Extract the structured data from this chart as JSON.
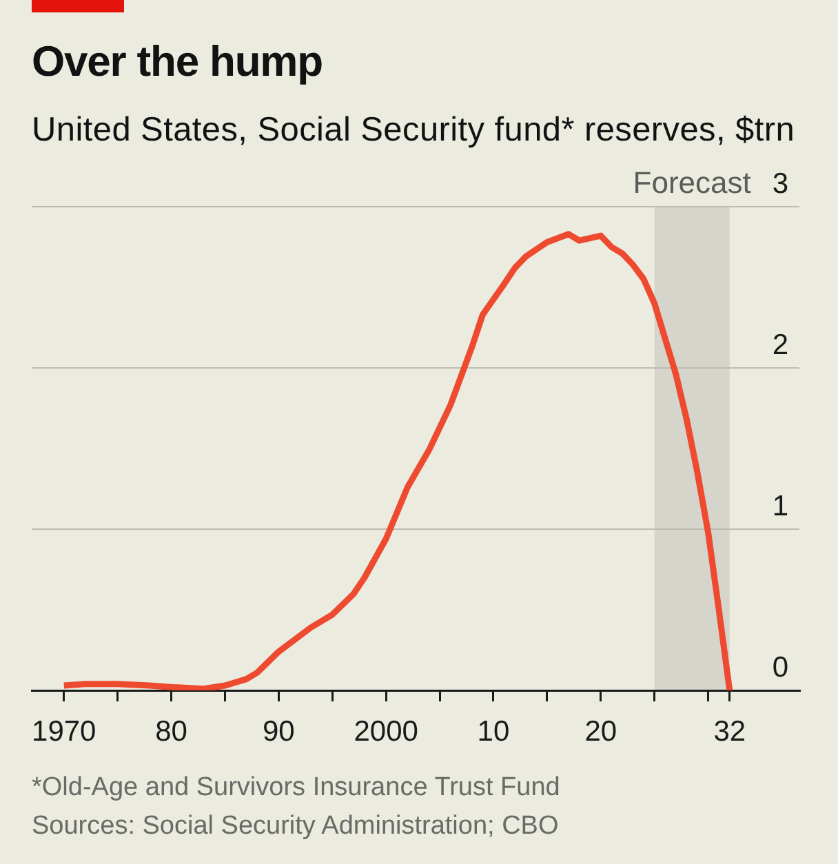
{
  "chart_data": {
    "type": "line",
    "title": "Over the hump",
    "subtitle": "United States, Social Security fund* reserves, $trn",
    "annotations": [
      "*Old-Age and Survivors Insurance Trust Fund",
      "Sources: Social Security Administration; CBO"
    ],
    "x": [
      1970,
      1972,
      1975,
      1978,
      1980,
      1983,
      1985,
      1987,
      1988,
      1990,
      1993,
      1995,
      1997,
      1998,
      2000,
      2002,
      2004,
      2006,
      2008,
      2009,
      2011,
      2012,
      2013,
      2015,
      2017,
      2018,
      2020,
      2021,
      2022,
      2023,
      2024,
      2025,
      2026,
      2027,
      2028,
      2029,
      2030,
      2031,
      2032
    ],
    "values": [
      0.03,
      0.04,
      0.04,
      0.03,
      0.02,
      0.01,
      0.03,
      0.07,
      0.11,
      0.24,
      0.39,
      0.47,
      0.6,
      0.7,
      0.94,
      1.26,
      1.49,
      1.77,
      2.13,
      2.33,
      2.52,
      2.62,
      2.69,
      2.78,
      2.83,
      2.79,
      2.82,
      2.75,
      2.71,
      2.64,
      2.55,
      2.4,
      2.18,
      1.96,
      1.68,
      1.35,
      0.98,
      0.5,
      0
    ],
    "color": "#ee4a30",
    "xlim": [
      1967,
      2038.5
    ],
    "xticks": [
      1970,
      {
        "value": 1975,
        "label": null
      },
      {
        "value": 1980,
        "label": "80"
      },
      {
        "value": 1985,
        "label": null
      },
      {
        "value": 1990,
        "label": "90"
      },
      {
        "value": 1995,
        "label": null
      },
      2000,
      {
        "value": 2005,
        "label": null
      },
      {
        "value": 2010,
        "label": "10"
      },
      {
        "value": 2015,
        "label": null
      },
      {
        "value": 2020,
        "label": "20"
      },
      {
        "value": 2025,
        "label": null
      },
      {
        "value": 2030,
        "label": null
      },
      {
        "value": 2032,
        "label": "32"
      }
    ],
    "ylim": [
      0,
      3
    ],
    "yticks": [
      0,
      1,
      2,
      3
    ],
    "grid": "y",
    "legend": false,
    "bands": [
      {
        "axis": "x",
        "from": 2025,
        "to": 2032,
        "label": "Forecast",
        "color": "#d5d5cb"
      }
    ]
  }
}
